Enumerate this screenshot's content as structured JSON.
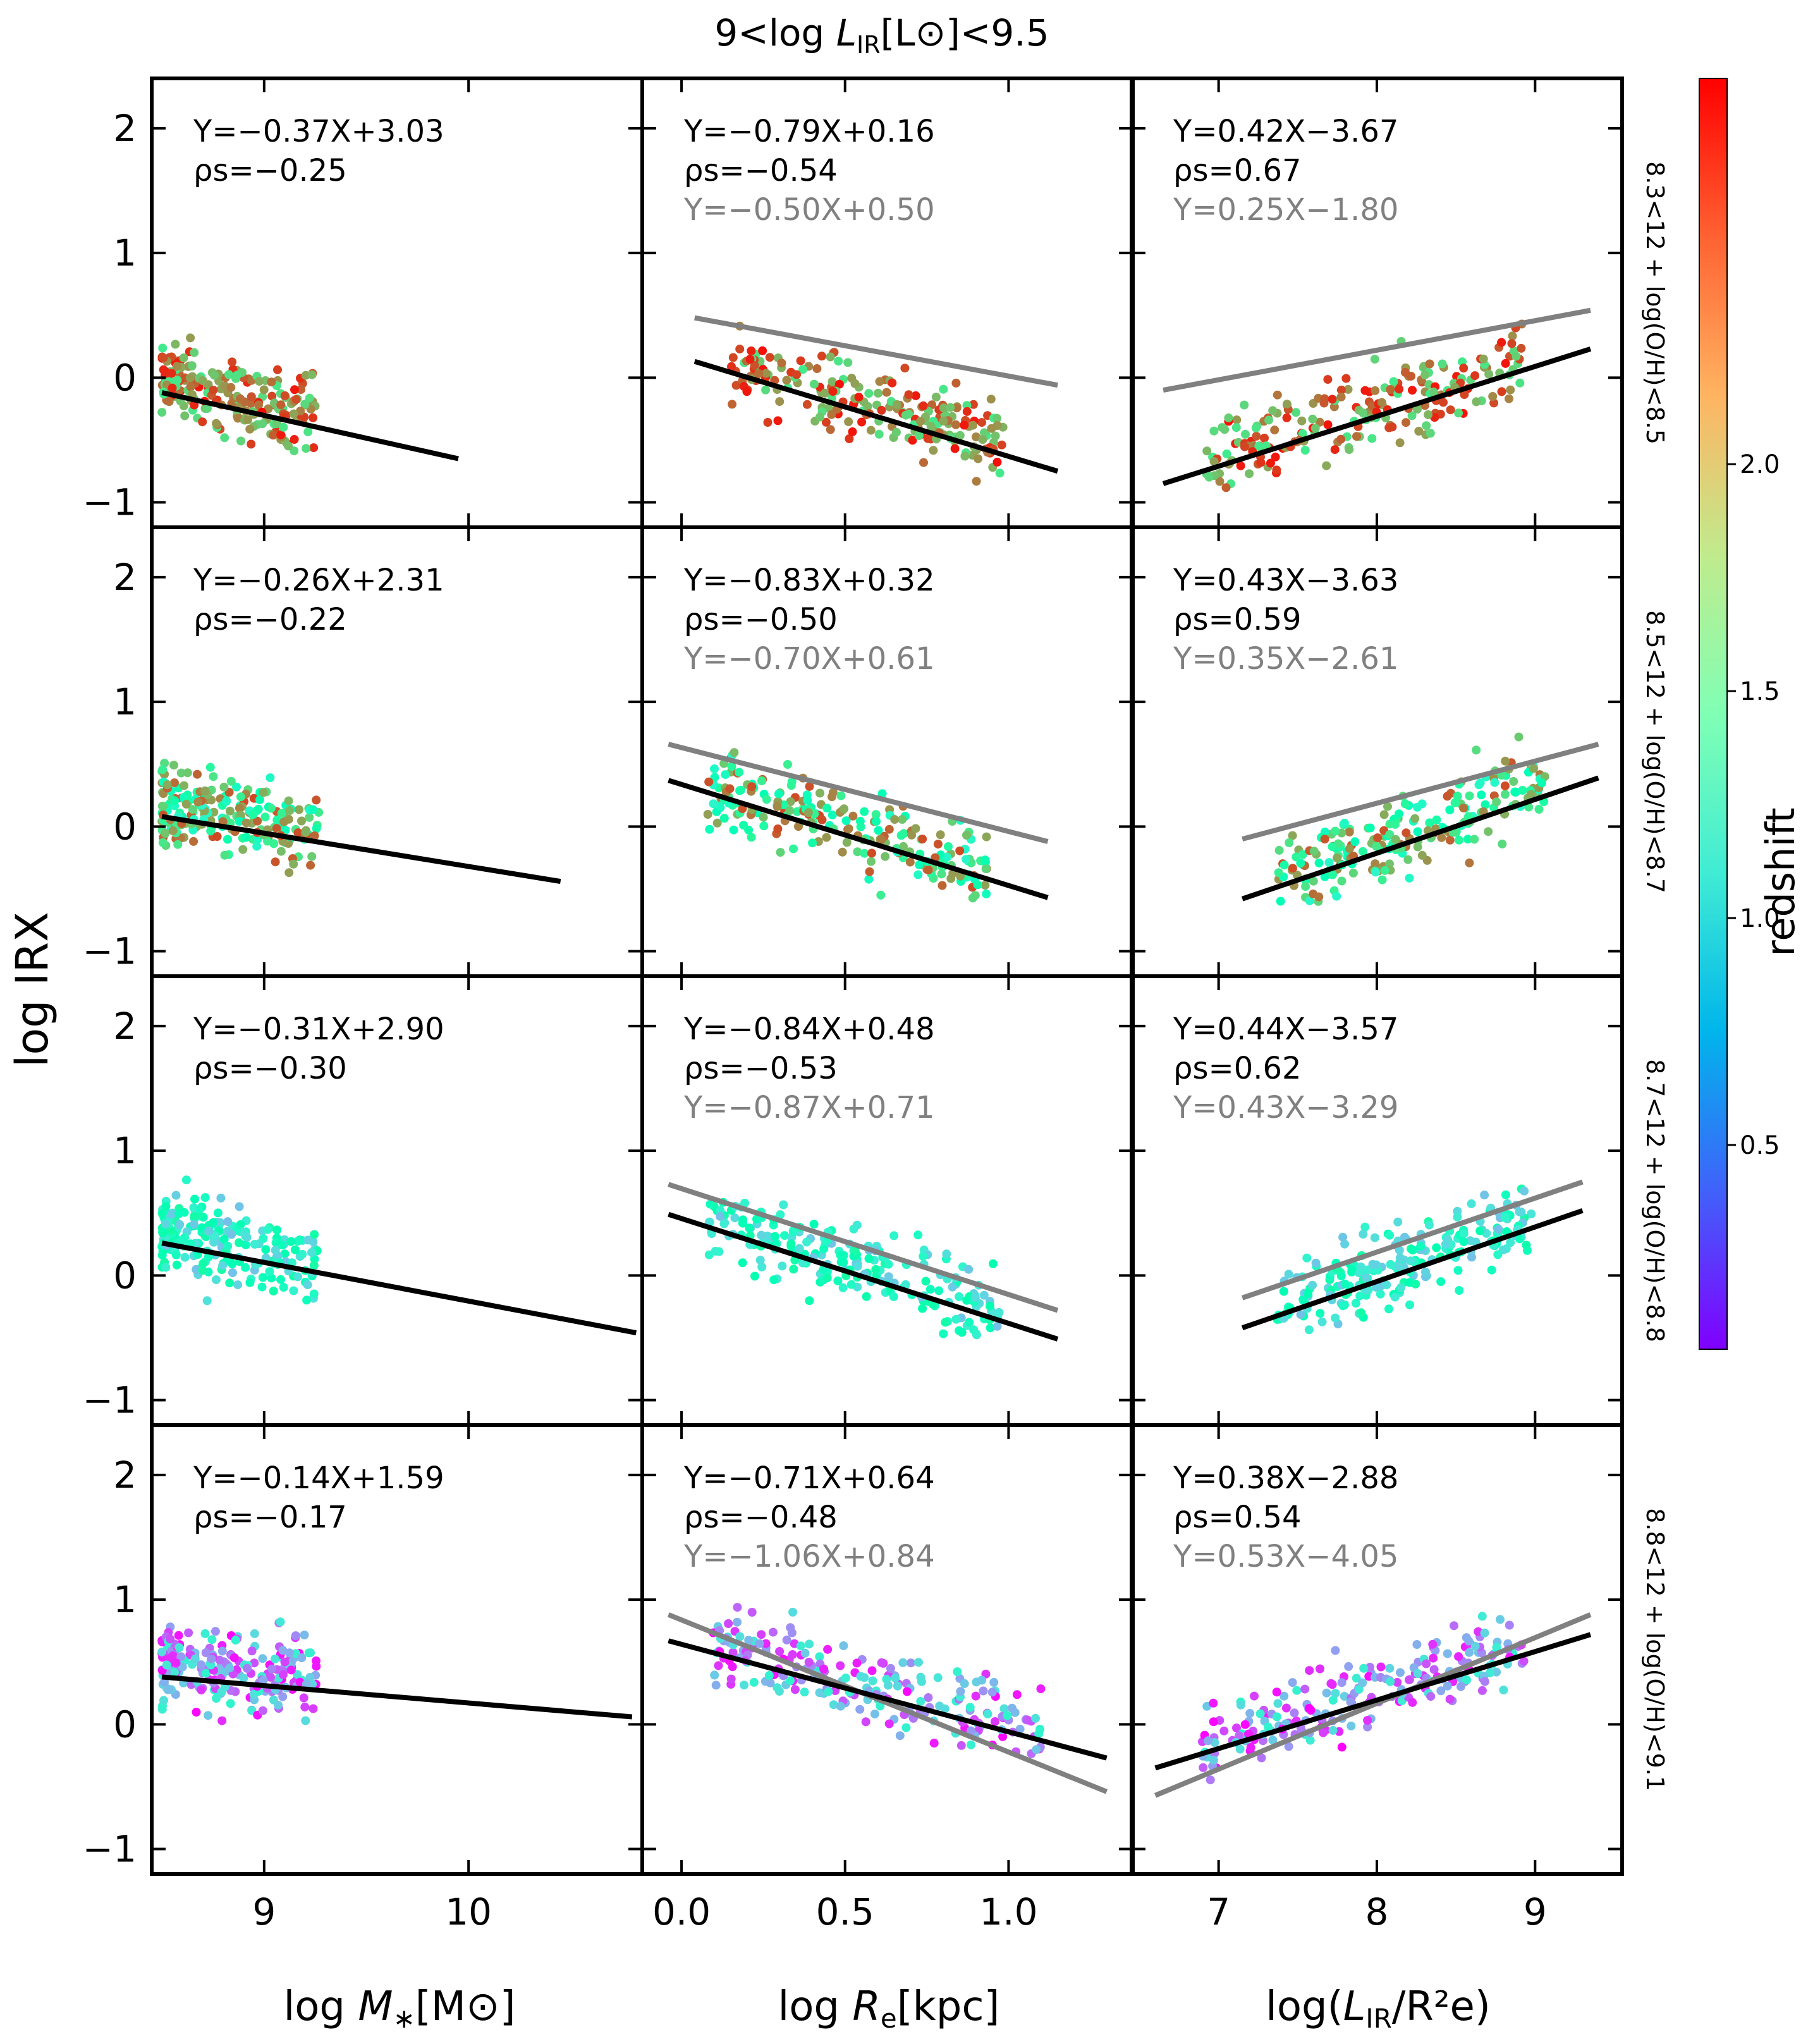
{
  "chart_data": {
    "type": "scatter",
    "title": "9<log L_IR[L_⊙]<9.5",
    "title_parts": {
      "pre": "9<log ",
      "L": "L",
      "sub": "IR",
      "post": "[L⊙]<9.5"
    },
    "ylabel": "log IRX",
    "ylim": [
      -1.2,
      2.4
    ],
    "yticks": [
      -1,
      0,
      1,
      2
    ],
    "columns": [
      {
        "xlabel_parts": {
          "pre": "log ",
          "ital": "M",
          "sub": "∗",
          "post": "[M⊙]"
        },
        "xlim": [
          8.45,
          10.85
        ],
        "xticks": [
          9,
          10
        ],
        "tick_labels": [
          "9",
          "10"
        ]
      },
      {
        "xlabel_parts": {
          "pre": "log ",
          "ital": "R",
          "sub": "e",
          "post": "[kpc]"
        },
        "xlim": [
          -0.12,
          1.38
        ],
        "xticks": [
          0.0,
          0.5,
          1.0
        ],
        "tick_labels": [
          "0.0",
          "0.5",
          "1.0"
        ]
      },
      {
        "xlabel_parts": {
          "pre": "log(",
          "ital": "L",
          "sub": "IR",
          "post": "/R²e)"
        },
        "xlim": [
          6.45,
          9.55
        ],
        "xticks": [
          7,
          8,
          9
        ],
        "tick_labels": [
          "7",
          "8",
          "9"
        ]
      }
    ],
    "rows": [
      {
        "label": "8.3<12 + log(O/H)<8.5",
        "redshift_range": [
          1.8,
          2.8
        ]
      },
      {
        "label": "8.5<12 + log(O/H)<8.7",
        "redshift_range": [
          1.2,
          2.6
        ]
      },
      {
        "label": "8.7<12 + log(O/H)<8.8",
        "redshift_range": [
          0.8,
          1.6
        ]
      },
      {
        "label": "8.8<12 + log(O/H)<9.1",
        "redshift_range": [
          0.05,
          1.2
        ]
      }
    ],
    "panels": [
      [
        {
          "fit": "Y=−0.37X+3.03",
          "rho": "ρs=−0.25",
          "line": {
            "x": [
              8.5,
              9.95
            ],
            "y": [
              -0.12,
              -0.65
            ]
          }
        },
        {
          "fit": "Y=−0.79X+0.16",
          "rho": "ρs=−0.54",
          "fit2": "Y=−0.50X+0.50",
          "line": {
            "x": [
              0.04,
              1.15
            ],
            "y": [
              0.13,
              -0.75
            ]
          },
          "line2": {
            "x": [
              0.04,
              1.15
            ],
            "y": [
              0.48,
              -0.06
            ]
          }
        },
        {
          "fit": "Y=0.42X−3.67",
          "rho": "ρs=0.67",
          "fit2": "Y=0.25X−1.80",
          "line": {
            "x": [
              6.65,
              9.35
            ],
            "y": [
              -0.85,
              0.23
            ]
          },
          "line2": {
            "x": [
              6.65,
              9.35
            ],
            "y": [
              -0.1,
              0.54
            ]
          }
        }
      ],
      [
        {
          "fit": "Y=−0.26X+2.31",
          "rho": "ρs=−0.22",
          "line": {
            "x": [
              8.5,
              10.45
            ],
            "y": [
              0.08,
              -0.44
            ]
          }
        },
        {
          "fit": "Y=−0.83X+0.32",
          "rho": "ρs=−0.50",
          "fit2": "Y=−0.70X+0.61",
          "line": {
            "x": [
              -0.04,
              1.12
            ],
            "y": [
              0.37,
              -0.57
            ]
          },
          "line2": {
            "x": [
              -0.04,
              1.12
            ],
            "y": [
              0.66,
              -0.12
            ]
          }
        },
        {
          "fit": "Y=0.43X−3.63",
          "rho": "ρs=0.59",
          "fit2": "Y=0.35X−2.61",
          "line": {
            "x": [
              7.15,
              9.4
            ],
            "y": [
              -0.58,
              0.39
            ]
          },
          "line2": {
            "x": [
              7.15,
              9.4
            ],
            "y": [
              -0.1,
              0.66
            ]
          }
        }
      ],
      [
        {
          "fit": "Y=−0.31X+2.90",
          "rho": "ρs=−0.30",
          "line": {
            "x": [
              8.5,
              10.82
            ],
            "y": [
              0.26,
              -0.46
            ]
          }
        },
        {
          "fit": "Y=−0.84X+0.48",
          "rho": "ρs=−0.53",
          "fit2": "Y=−0.87X+0.71",
          "line": {
            "x": [
              -0.04,
              1.15
            ],
            "y": [
              0.49,
              -0.51
            ]
          },
          "line2": {
            "x": [
              -0.04,
              1.15
            ],
            "y": [
              0.73,
              -0.28
            ]
          }
        },
        {
          "fit": "Y=0.44X−3.57",
          "rho": "ρs=0.62",
          "fit2": "Y=0.43X−3.29",
          "line": {
            "x": [
              7.15,
              9.3
            ],
            "y": [
              -0.42,
              0.52
            ]
          },
          "line2": {
            "x": [
              7.15,
              9.3
            ],
            "y": [
              -0.18,
              0.75
            ]
          }
        }
      ],
      [
        {
          "fit": "Y=−0.14X+1.59",
          "rho": "ρs=−0.17",
          "line": {
            "x": [
              8.5,
              10.8
            ],
            "y": [
              0.38,
              0.06
            ]
          }
        },
        {
          "fit": "Y=−0.71X+0.64",
          "rho": "ρs=−0.48",
          "fit2": "Y=−1.06X+0.84",
          "line": {
            "x": [
              -0.04,
              1.3
            ],
            "y": [
              0.67,
              -0.27
            ]
          },
          "line2": {
            "x": [
              -0.04,
              1.3
            ],
            "y": [
              0.88,
              -0.54
            ]
          }
        },
        {
          "fit": "Y=0.38X−2.88",
          "rho": "ρs=0.54",
          "fit2": "Y=0.53X−4.05",
          "line": {
            "x": [
              6.6,
              9.35
            ],
            "y": [
              -0.35,
              0.72
            ]
          },
          "line2": {
            "x": [
              6.6,
              9.35
            ],
            "y": [
              -0.57,
              0.88
            ]
          }
        }
      ]
    ],
    "colorbar": {
      "label": "redshift",
      "range": [
        0.05,
        2.85
      ],
      "ticks": [
        0.5,
        1.0,
        1.5,
        2.0
      ],
      "tick_labels": [
        "0.5",
        "1.0",
        "1.5",
        "2.0"
      ],
      "colormap": "rainbow"
    },
    "colors": {
      "fit_line": "#000000",
      "comparison_line": "#808080"
    }
  }
}
